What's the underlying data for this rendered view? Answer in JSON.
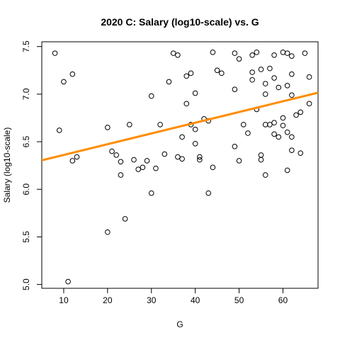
{
  "chart_data": {
    "type": "scatter",
    "title": "2020 C: Salary (log10-scale) vs. G",
    "xlabel": "G",
    "ylabel": "Salary (log10-scale)",
    "xlim": [
      5,
      68
    ],
    "ylim": [
      4.96,
      7.55
    ],
    "xticks": [
      10,
      20,
      30,
      40,
      50,
      60
    ],
    "yticks": [
      5.0,
      5.5,
      6.0,
      6.5,
      7.0,
      7.5
    ],
    "grid": false,
    "legend": "none",
    "fit_line": {
      "x": [
        5,
        68
      ],
      "y": [
        6.305,
        7.015
      ],
      "color": "#FF8C00"
    },
    "points": [
      {
        "x": 8,
        "y": 7.43
      },
      {
        "x": 9,
        "y": 6.62
      },
      {
        "x": 10,
        "y": 7.13
      },
      {
        "x": 11,
        "y": 5.03
      },
      {
        "x": 12,
        "y": 7.21
      },
      {
        "x": 12,
        "y": 6.3
      },
      {
        "x": 13,
        "y": 6.34
      },
      {
        "x": 20,
        "y": 6.65
      },
      {
        "x": 20,
        "y": 5.55
      },
      {
        "x": 21,
        "y": 6.4
      },
      {
        "x": 22,
        "y": 6.36
      },
      {
        "x": 23,
        "y": 6.29
      },
      {
        "x": 23,
        "y": 6.15
      },
      {
        "x": 24,
        "y": 5.69
      },
      {
        "x": 25,
        "y": 6.68
      },
      {
        "x": 26,
        "y": 6.31
      },
      {
        "x": 27,
        "y": 6.21
      },
      {
        "x": 28,
        "y": 6.23
      },
      {
        "x": 29,
        "y": 6.3
      },
      {
        "x": 30,
        "y": 6.98
      },
      {
        "x": 30,
        "y": 5.96
      },
      {
        "x": 31,
        "y": 6.22
      },
      {
        "x": 32,
        "y": 6.68
      },
      {
        "x": 33,
        "y": 6.37
      },
      {
        "x": 34,
        "y": 7.13
      },
      {
        "x": 35,
        "y": 7.43
      },
      {
        "x": 36,
        "y": 7.41
      },
      {
        "x": 36,
        "y": 6.34
      },
      {
        "x": 37,
        "y": 6.55
      },
      {
        "x": 37,
        "y": 6.32
      },
      {
        "x": 38,
        "y": 7.19
      },
      {
        "x": 38,
        "y": 6.9
      },
      {
        "x": 39,
        "y": 7.22
      },
      {
        "x": 39,
        "y": 6.68
      },
      {
        "x": 40,
        "y": 7.01
      },
      {
        "x": 40,
        "y": 6.63
      },
      {
        "x": 40,
        "y": 6.48
      },
      {
        "x": 41,
        "y": 6.34
      },
      {
        "x": 41,
        "y": 6.31
      },
      {
        "x": 42,
        "y": 6.74
      },
      {
        "x": 43,
        "y": 6.72
      },
      {
        "x": 43,
        "y": 5.96
      },
      {
        "x": 44,
        "y": 7.44
      },
      {
        "x": 44,
        "y": 6.23
      },
      {
        "x": 45,
        "y": 7.25
      },
      {
        "x": 46,
        "y": 7.22
      },
      {
        "x": 49,
        "y": 7.43
      },
      {
        "x": 49,
        "y": 7.05
      },
      {
        "x": 49,
        "y": 6.45
      },
      {
        "x": 50,
        "y": 7.37
      },
      {
        "x": 50,
        "y": 6.3
      },
      {
        "x": 51,
        "y": 6.68
      },
      {
        "x": 52,
        "y": 6.59
      },
      {
        "x": 53,
        "y": 7.41
      },
      {
        "x": 53,
        "y": 7.23
      },
      {
        "x": 53,
        "y": 7.15
      },
      {
        "x": 54,
        "y": 7.44
      },
      {
        "x": 54,
        "y": 6.84
      },
      {
        "x": 55,
        "y": 7.26
      },
      {
        "x": 55,
        "y": 6.36
      },
      {
        "x": 55,
        "y": 6.31
      },
      {
        "x": 56,
        "y": 7.11
      },
      {
        "x": 56,
        "y": 7.0
      },
      {
        "x": 56,
        "y": 6.68
      },
      {
        "x": 56,
        "y": 6.15
      },
      {
        "x": 57,
        "y": 7.27
      },
      {
        "x": 57,
        "y": 6.68
      },
      {
        "x": 58,
        "y": 7.41
      },
      {
        "x": 58,
        "y": 7.17
      },
      {
        "x": 58,
        "y": 6.7
      },
      {
        "x": 58,
        "y": 6.58
      },
      {
        "x": 59,
        "y": 7.07
      },
      {
        "x": 59,
        "y": 6.55
      },
      {
        "x": 60,
        "y": 7.44
      },
      {
        "x": 60,
        "y": 6.75
      },
      {
        "x": 60,
        "y": 6.67
      },
      {
        "x": 61,
        "y": 7.43
      },
      {
        "x": 61,
        "y": 7.09
      },
      {
        "x": 61,
        "y": 6.6
      },
      {
        "x": 61,
        "y": 6.2
      },
      {
        "x": 62,
        "y": 7.4
      },
      {
        "x": 62,
        "y": 7.21
      },
      {
        "x": 62,
        "y": 6.99
      },
      {
        "x": 62,
        "y": 6.55
      },
      {
        "x": 62,
        "y": 6.41
      },
      {
        "x": 63,
        "y": 6.78
      },
      {
        "x": 64,
        "y": 6.81
      },
      {
        "x": 64,
        "y": 6.38
      },
      {
        "x": 65,
        "y": 7.43
      },
      {
        "x": 66,
        "y": 7.18
      },
      {
        "x": 66,
        "y": 6.9
      }
    ]
  }
}
